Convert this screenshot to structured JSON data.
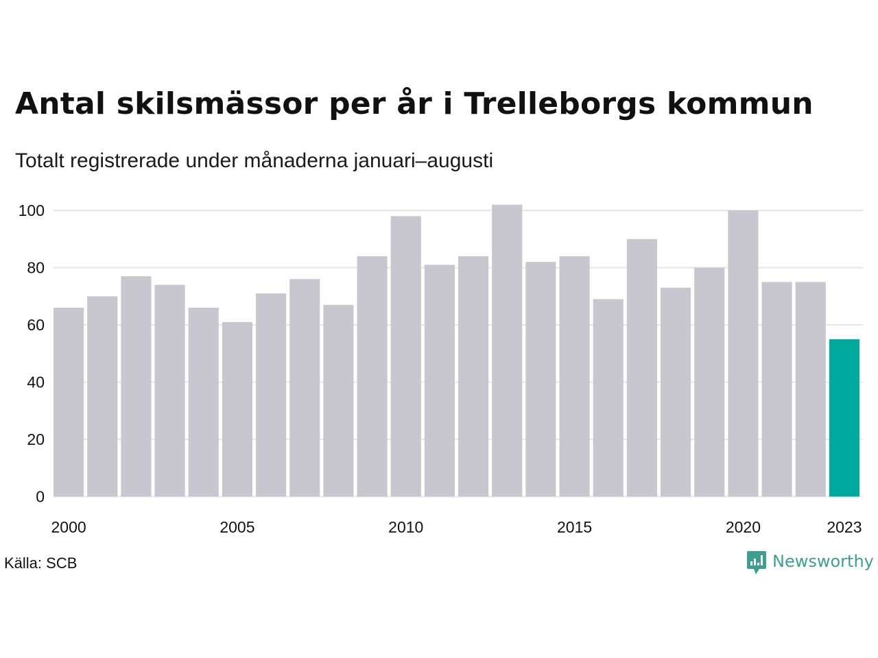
{
  "title": "Antal skilsmässor per år i Trelleborgs kommun",
  "subtitle": "Totalt registrerade under månaderna januari–augusti",
  "source": "Källa: SCB",
  "brand": {
    "name": "Newsworthy",
    "icon": "newsworthy-logo-icon",
    "color": "#3f9e90"
  },
  "colors": {
    "bar": "#c8c7d0",
    "highlight": "#00a99d",
    "grid": "#e6e6e6"
  },
  "chart_data": {
    "type": "bar",
    "title": "Antal skilsmässor per år i Trelleborgs kommun",
    "subtitle": "Totalt registrerade under månaderna januari–augusti",
    "xlabel": "",
    "ylabel": "",
    "categories": [
      2000,
      2001,
      2002,
      2003,
      2004,
      2005,
      2006,
      2007,
      2008,
      2009,
      2010,
      2011,
      2012,
      2013,
      2014,
      2015,
      2016,
      2017,
      2018,
      2019,
      2020,
      2021,
      2022,
      2023
    ],
    "values": [
      66,
      70,
      77,
      74,
      66,
      61,
      71,
      76,
      67,
      84,
      98,
      81,
      84,
      102,
      82,
      84,
      69,
      90,
      73,
      80,
      100,
      75,
      75,
      55
    ],
    "highlight_category": 2023,
    "ylim": [
      0,
      104
    ],
    "yticks": [
      0,
      20,
      40,
      60,
      80,
      100
    ],
    "xtick_labels": [
      "2000",
      "2005",
      "2010",
      "2015",
      "2020",
      "2023"
    ],
    "grid": true,
    "legend": "none"
  }
}
